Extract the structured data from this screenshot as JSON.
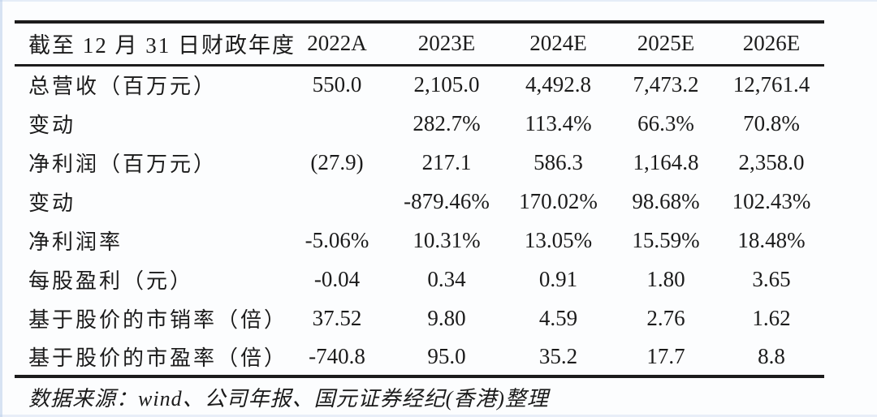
{
  "table": {
    "header": [
      "截至 12 月 31 日财政年度",
      "2022A",
      "2023E",
      "2024E",
      "2025E",
      "2026E"
    ],
    "rows": [
      {
        "label": "总营收（百万元）",
        "values": [
          "550.0",
          "2,105.0",
          "4,492.8",
          "7,473.2",
          "12,761.4"
        ]
      },
      {
        "label": "变动",
        "values": [
          "",
          "282.7%",
          "113.4%",
          "66.3%",
          "70.8%"
        ]
      },
      {
        "label": "净利润（百万元）",
        "values": [
          "(27.9)",
          "217.1",
          "586.3",
          "1,164.8",
          "2,358.0"
        ]
      },
      {
        "label": "变动",
        "values": [
          "",
          "-879.46%",
          "170.02%",
          "98.68%",
          "102.43%"
        ]
      },
      {
        "label": "净利润率",
        "values": [
          "-5.06%",
          "10.31%",
          "13.05%",
          "15.59%",
          "18.48%"
        ]
      },
      {
        "label": "每股盈利（元）",
        "values": [
          "-0.04",
          "0.34",
          "0.91",
          "1.80",
          "3.65"
        ]
      },
      {
        "label": "基于股价的市销率（倍）",
        "values": [
          "37.52",
          "9.80",
          "4.59",
          "2.76",
          "1.62"
        ]
      },
      {
        "label": "基于股价的市盈率（倍）",
        "values": [
          "-740.8",
          "95.0",
          "35.2",
          "17.7",
          "8.8"
        ]
      }
    ],
    "source_note": "数据来源：wind、公司年报、国元证券经纪(香港)整理"
  },
  "colors": {
    "text": "#1b1b1b",
    "rule": "#1c1c1c",
    "background": "#fcfdfe",
    "edge_tint": "#aac3e6"
  },
  "chart_data": {
    "type": "table",
    "title": "截至 12 月 31 日财政年度",
    "columns": [
      "2022A",
      "2023E",
      "2024E",
      "2025E",
      "2026E"
    ],
    "rows": [
      {
        "label": "总营收（百万元）",
        "values": [
          550.0,
          2105.0,
          4492.8,
          7473.2,
          12761.4
        ]
      },
      {
        "label": "变动",
        "values": [
          null,
          "282.7%",
          "113.4%",
          "66.3%",
          "70.8%"
        ]
      },
      {
        "label": "净利润（百万元）",
        "values": [
          -27.9,
          217.1,
          586.3,
          1164.8,
          2358.0
        ]
      },
      {
        "label": "变动",
        "values": [
          null,
          "-879.46%",
          "170.02%",
          "98.68%",
          "102.43%"
        ]
      },
      {
        "label": "净利润率",
        "values": [
          "-5.06%",
          "10.31%",
          "13.05%",
          "15.59%",
          "18.48%"
        ]
      },
      {
        "label": "每股盈利（元）",
        "values": [
          -0.04,
          0.34,
          0.91,
          1.8,
          3.65
        ]
      },
      {
        "label": "基于股价的市销率（倍）",
        "values": [
          37.52,
          9.8,
          4.59,
          2.76,
          1.62
        ]
      },
      {
        "label": "基于股价的市盈率（倍）",
        "values": [
          -740.8,
          95.0,
          35.2,
          17.7,
          8.8
        ]
      }
    ],
    "source": "数据来源：wind、公司年报、国元证券经纪(香港)整理"
  }
}
